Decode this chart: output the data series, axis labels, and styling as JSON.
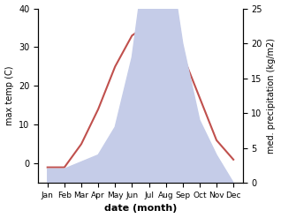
{
  "months": [
    "Jan",
    "Feb",
    "Mar",
    "Apr",
    "May",
    "Jun",
    "Jul",
    "Aug",
    "Sep",
    "Oct",
    "Nov",
    "Dec"
  ],
  "temperature": [
    -1,
    -1,
    5,
    14,
    25,
    33,
    36,
    38,
    28,
    17,
    6,
    1
  ],
  "precipitation": [
    2,
    2,
    3,
    4,
    8,
    18,
    36,
    36,
    20,
    9,
    4,
    0
  ],
  "temp_color": "#c0504d",
  "precip_fill_color": "#c5cce8",
  "temp_ylim": [
    -5,
    40
  ],
  "precip_ylim": [
    0,
    25
  ],
  "ylabel_left": "max temp (C)",
  "ylabel_right": "med. precipitation (kg/m2)",
  "xlabel": "date (month)",
  "left_ticks": [
    0,
    10,
    20,
    30,
    40
  ],
  "right_ticks": [
    0,
    5,
    10,
    15,
    20,
    25
  ],
  "bg_color": "#ffffff",
  "temp_linewidth": 1.5,
  "label_fontsize": 7,
  "tick_fontsize": 7,
  "xlabel_fontsize": 8
}
